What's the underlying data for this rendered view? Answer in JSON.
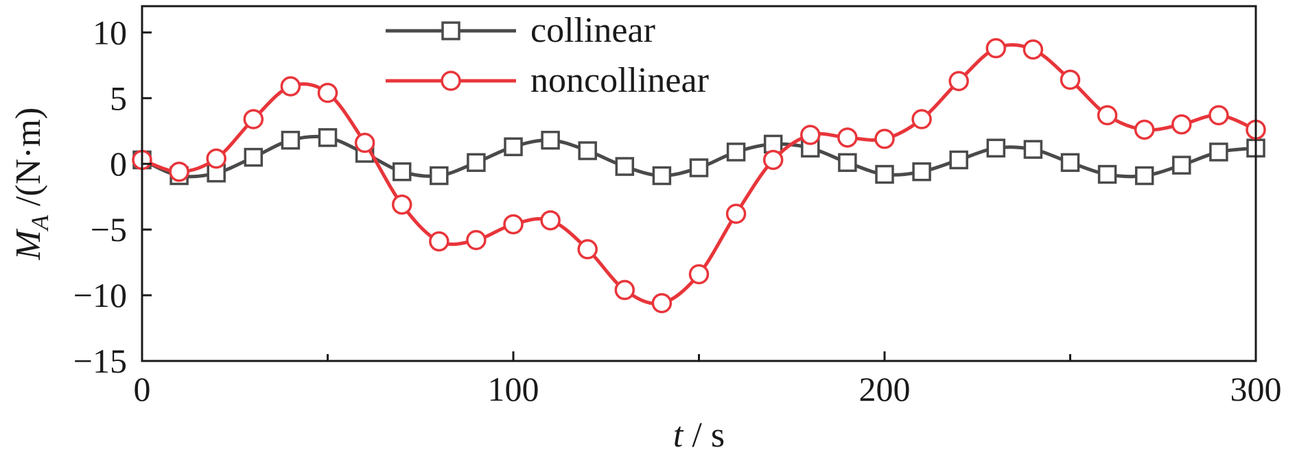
{
  "chart_data": {
    "type": "line",
    "xlabel": "t / s",
    "ylabel": "M_A /(N·m)",
    "xlim": [
      0,
      300
    ],
    "ylim": [
      -15,
      12
    ],
    "xticks": [
      0,
      100,
      200,
      300
    ],
    "xtick_labels": [
      "0",
      "100",
      "200",
      "300"
    ],
    "xticks_minor": [
      50,
      150,
      250
    ],
    "yticks": [
      -15,
      -10,
      -5,
      0,
      5,
      10
    ],
    "ytick_labels": [
      "−15",
      "−10",
      "−5",
      "0",
      "5",
      "10"
    ],
    "grid": false,
    "legend_position": "top-center",
    "x": [
      0,
      10,
      20,
      30,
      40,
      50,
      60,
      70,
      80,
      90,
      100,
      110,
      120,
      130,
      140,
      150,
      160,
      170,
      180,
      190,
      200,
      210,
      220,
      230,
      240,
      250,
      260,
      270,
      280,
      290,
      300
    ],
    "series": [
      {
        "name": "collinear",
        "color": "#4a4a4a",
        "marker": "square",
        "values": [
          0.3,
          -0.9,
          -0.7,
          0.5,
          1.8,
          2.0,
          0.8,
          -0.6,
          -0.9,
          0.1,
          1.3,
          1.8,
          1.0,
          -0.2,
          -0.9,
          -0.3,
          0.9,
          1.5,
          1.2,
          0.1,
          -0.8,
          -0.6,
          0.3,
          1.2,
          1.1,
          0.1,
          -0.8,
          -0.9,
          -0.1,
          0.9,
          1.2
        ]
      },
      {
        "name": "noncollinear",
        "color": "#e8353a",
        "marker": "circle",
        "values": [
          0.3,
          -0.6,
          0.4,
          3.4,
          5.9,
          5.4,
          1.6,
          -3.1,
          -5.9,
          -5.8,
          -4.6,
          -4.3,
          -6.5,
          -9.6,
          -10.6,
          -8.4,
          -3.8,
          0.3,
          2.2,
          2.0,
          1.9,
          3.4,
          6.3,
          8.8,
          8.7,
          6.4,
          3.7,
          2.6,
          3.0,
          3.7,
          2.6
        ]
      }
    ]
  }
}
